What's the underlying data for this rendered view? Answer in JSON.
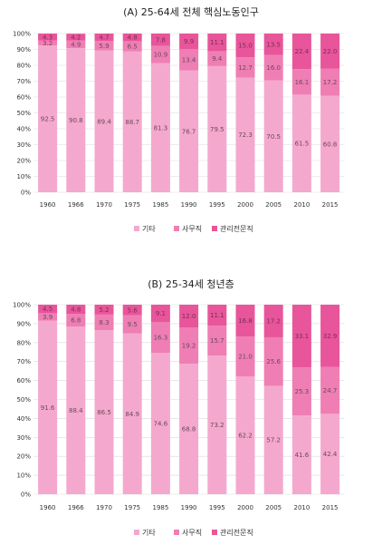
{
  "colors": {
    "기타": "#f5a8cd",
    "사무직": "#ef7eb4",
    "관리전문직": "#e8559a",
    "grid": "#d9d9d9",
    "label": "#6a4a5a"
  },
  "chart_data": [
    {
      "type": "bar",
      "stacked": true,
      "title": "(A)  25-64세 전체 핵심노동인구",
      "categories": [
        "1960",
        "1966",
        "1970",
        "1975",
        "1985",
        "1990",
        "1995",
        "2000",
        "2005",
        "2010",
        "2015"
      ],
      "ylim": [
        0,
        100
      ],
      "yticks": [
        "0%",
        "10%",
        "20%",
        "30%",
        "40%",
        "50%",
        "60%",
        "70%",
        "80%",
        "90%",
        "100%"
      ],
      "series": [
        {
          "name": "기타",
          "color": "#f5a8cd",
          "values": [
            92.5,
            90.8,
            89.4,
            88.7,
            81.3,
            76.7,
            79.5,
            72.3,
            70.5,
            61.5,
            60.8
          ]
        },
        {
          "name": "사무직",
          "color": "#ef7eb4",
          "values": [
            3.2,
            4.9,
            5.9,
            6.5,
            10.9,
            13.4,
            9.4,
            12.7,
            16.0,
            16.1,
            17.2
          ]
        },
        {
          "name": "관리전문직",
          "color": "#e8559a",
          "values": [
            4.3,
            4.2,
            4.7,
            4.8,
            7.8,
            9.9,
            11.1,
            15.0,
            13.5,
            22.4,
            22.0
          ]
        }
      ],
      "labels": [
        [
          "92.5",
          "90.8",
          "89.4",
          "88.7",
          "81.3",
          "76.7",
          "79.5",
          "72.3",
          "70.5",
          "61.5",
          "60.8"
        ],
        [
          "3.2",
          "4.9",
          "5.9",
          "6.5",
          "10.9",
          "13.4",
          "9.4",
          "12.7",
          "16.0",
          "16.1",
          "17.2"
        ],
        [
          "4.3",
          "4.2",
          "4.7",
          "4.8",
          "7.8",
          "9.9",
          "11.1",
          "15.0",
          "13.5",
          "22.4",
          "22.0"
        ]
      ],
      "legend": [
        "기타",
        "사무직",
        "관리전문직"
      ]
    },
    {
      "type": "bar",
      "stacked": true,
      "title": "(B)  25-34세 청년층",
      "categories": [
        "1960",
        "1966",
        "1970",
        "1975",
        "1985",
        "1990",
        "1995",
        "2000",
        "2005",
        "2010",
        "2015"
      ],
      "ylim": [
        0,
        100
      ],
      "yticks": [
        "0%",
        "10%",
        "20%",
        "30%",
        "40%",
        "50%",
        "60%",
        "70%",
        "80%",
        "90%",
        "100%"
      ],
      "series": [
        {
          "name": "기타",
          "color": "#f5a8cd",
          "values": [
            91.6,
            88.4,
            86.5,
            84.9,
            74.6,
            68.8,
            73.2,
            62.2,
            57.2,
            41.6,
            42.4
          ]
        },
        {
          "name": "사무직",
          "color": "#ef7eb4",
          "values": [
            3.9,
            6.8,
            8.3,
            9.5,
            16.3,
            19.2,
            15.7,
            21.0,
            25.6,
            25.3,
            24.7
          ]
        },
        {
          "name": "관리전문직",
          "color": "#e8559a",
          "values": [
            4.5,
            4.8,
            5.2,
            5.6,
            9.1,
            12.0,
            11.1,
            16.8,
            17.2,
            33.1,
            32.9
          ]
        }
      ],
      "labels": [
        [
          "91.6",
          "88.4",
          "86.5",
          "84.9",
          "74.6",
          "68.8",
          "73.2",
          "62.2",
          "57.2",
          "41.6",
          "42.4"
        ],
        [
          "3.9",
          "6.8",
          "8.3",
          "9.5",
          "16.3",
          "19.2",
          "15.7",
          "21.0",
          "25.6",
          "25.3",
          "24.7"
        ],
        [
          "4.5",
          "4.8",
          "5.2",
          "5.6",
          "9.1",
          "12.0",
          "11.1",
          "16.8",
          "17.2",
          "33.1",
          "32.9"
        ]
      ],
      "legend": [
        "기타",
        "사무직",
        "관리전문직"
      ]
    }
  ]
}
